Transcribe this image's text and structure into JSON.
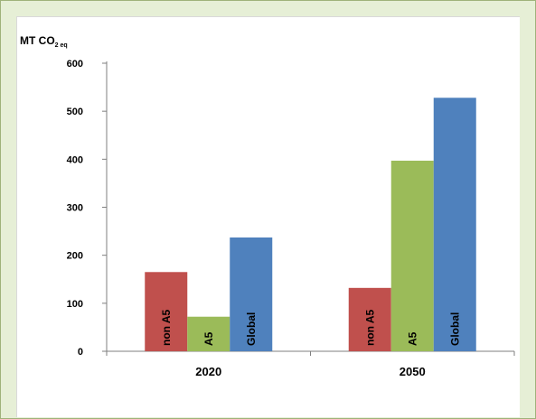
{
  "chart_data": {
    "type": "bar",
    "categories": [
      "2020",
      "2050"
    ],
    "series": [
      {
        "name": "non A5",
        "label": "non A5",
        "color": "#c0504d",
        "values": [
          165,
          132
        ]
      },
      {
        "name": "A5",
        "label": "A5",
        "color": "#9bbb59",
        "values": [
          72,
          397
        ]
      },
      {
        "name": "Global",
        "label": "Global",
        "color": "#4f81bd",
        "values": [
          237,
          528
        ]
      }
    ],
    "ylabel_main": "MT CO",
    "ylabel_sub": "2 eq",
    "ylim": [
      0,
      600
    ],
    "yticks": [
      "0",
      "100",
      "200",
      "300",
      "400",
      "500",
      "600"
    ],
    "grid": false,
    "legend": "none"
  }
}
